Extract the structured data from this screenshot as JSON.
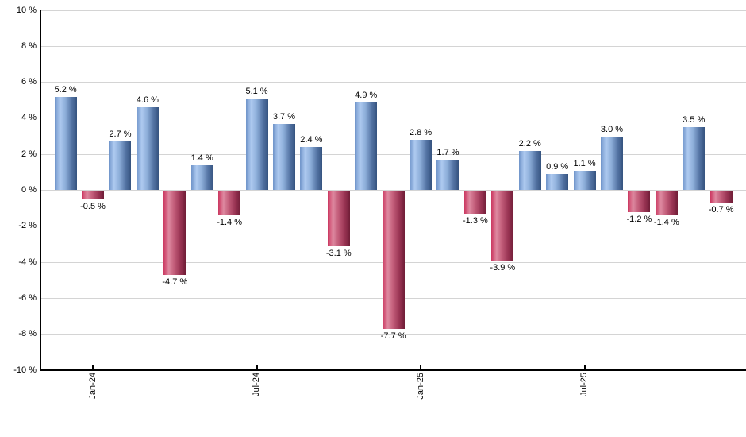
{
  "chart_data": {
    "type": "bar",
    "title": "",
    "xlabel": "",
    "ylabel": "",
    "ylim": [
      -10,
      10
    ],
    "grid_step_pct": 2,
    "grid_on": true,
    "legend": "none",
    "y_tick_labels": [
      "10 %",
      "8 %",
      "6 %",
      "4 %",
      "2 %",
      "0 %",
      "-2 %",
      "-4 %",
      "-6 %",
      "-8 %",
      "-10 %"
    ],
    "y_tick_values": [
      10,
      8,
      6,
      4,
      2,
      0,
      -2,
      -4,
      -6,
      -8,
      -10
    ],
    "x_tick_labels": [
      "Jan-24",
      "Jul-24",
      "Jan-25",
      "Jul-25"
    ],
    "x_tick_bar_indices": [
      1,
      7,
      13,
      19
    ],
    "values": [
      5.2,
      -0.5,
      2.7,
      4.6,
      -4.7,
      1.4,
      -1.4,
      5.1,
      3.7,
      2.4,
      -3.1,
      4.9,
      -7.7,
      2.8,
      1.7,
      -1.3,
      -3.9,
      2.2,
      0.9,
      1.1,
      3.0,
      -1.2,
      -1.4,
      3.5,
      -0.7
    ],
    "value_labels": [
      "5.2 %",
      "-0.5 %",
      "2.7 %",
      "4.6 %",
      "-4.7 %",
      "1.4 %",
      "-1.4 %",
      "5.1 %",
      "3.7 %",
      "2.4 %",
      "-3.1 %",
      "4.9 %",
      "-7.7 %",
      "2.8 %",
      "1.7 %",
      "-1.3 %",
      "-3.9 %",
      "2.2 %",
      "0.9 %",
      "1.1 %",
      "3.0 %",
      "-1.2 %",
      "-1.4 %",
      "3.5 %",
      "-0.7 %"
    ],
    "colors": {
      "positive": "#6f94c9",
      "negative": "#cb3760",
      "positive_gradient_stops": [
        "#6f94c9",
        "#aecaf0",
        "#8daed9",
        "#5474a4",
        "#35537f"
      ],
      "negative_gradient_stops": [
        "#cb3760",
        "#de89a0",
        "#c25c79",
        "#993453",
        "#701d37"
      ],
      "grid": "#d4d4d4",
      "axis": "#000000",
      "text": "#000000",
      "background": "#ffffff"
    }
  }
}
